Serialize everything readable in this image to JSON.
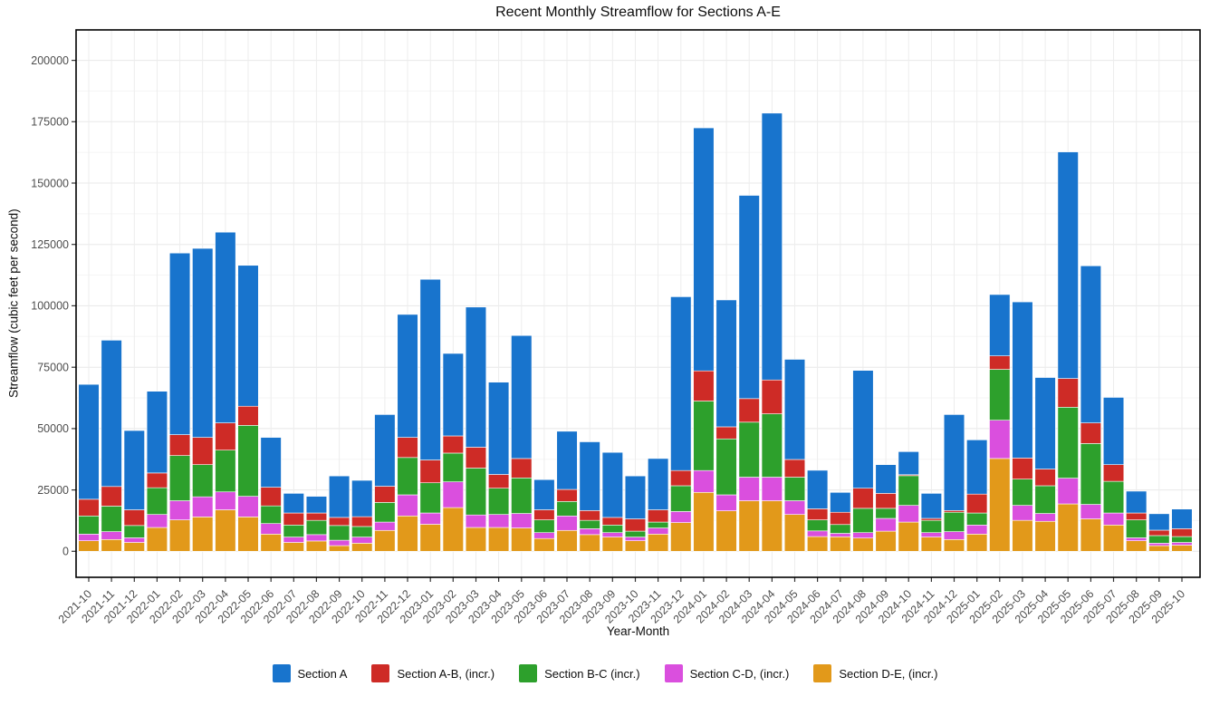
{
  "chart_data": {
    "type": "bar",
    "stacked": true,
    "title": "Recent Monthly Streamflow for Sections A-E",
    "xlabel": "Year-Month",
    "ylabel": "Streamflow (cubic feet per second)",
    "legend_position": "bottom",
    "grid": true,
    "stack_order": "last series at bottom, first series (Section A) on top",
    "categories": [
      "2021-10",
      "2021-11",
      "2021-12",
      "2022-01",
      "2022-02",
      "2022-03",
      "2022-04",
      "2022-05",
      "2022-06",
      "2022-07",
      "2022-08",
      "2022-09",
      "2022-10",
      "2022-11",
      "2022-12",
      "2023-01",
      "2023-02",
      "2023-03",
      "2023-04",
      "2023-05",
      "2023-06",
      "2023-07",
      "2023-08",
      "2023-09",
      "2023-10",
      "2023-11",
      "2023-12",
      "2024-01",
      "2024-02",
      "2024-03",
      "2024-04",
      "2024-05",
      "2024-06",
      "2024-07",
      "2024-08",
      "2024-09",
      "2024-10",
      "2024-11",
      "2024-12",
      "2025-01",
      "2025-02",
      "2025-03",
      "2025-04",
      "2025-05",
      "2025-06",
      "2025-07",
      "2025-08",
      "2025-09",
      "2025-10"
    ],
    "series": [
      {
        "name": "Section A",
        "color": "#1874CD",
        "values": [
          46800,
          59600,
          32300,
          33300,
          74000,
          77000,
          77700,
          57400,
          20300,
          8000,
          6800,
          16900,
          14800,
          29200,
          50100,
          73600,
          33600,
          57100,
          37600,
          50100,
          12300,
          23700,
          28000,
          26500,
          17500,
          20900,
          70800,
          99000,
          51700,
          82800,
          108700,
          40800,
          15700,
          8100,
          48000,
          11700,
          9400,
          10200,
          39100,
          22100,
          25000,
          63600,
          37300,
          92300,
          64000,
          27400,
          8900,
          6700,
          8000
        ]
      },
      {
        "name": "Section A-B, (incr.)",
        "color": "#CE2B26",
        "values": [
          6800,
          8000,
          6400,
          6000,
          8500,
          11100,
          11100,
          7800,
          7600,
          4900,
          3000,
          3300,
          4000,
          6600,
          8200,
          9300,
          7000,
          8500,
          5600,
          7900,
          4100,
          4900,
          4000,
          3100,
          5000,
          5000,
          6200,
          12300,
          4900,
          9600,
          13800,
          7200,
          4500,
          5000,
          8200,
          6100,
          400,
          800,
          700,
          7700,
          5500,
          8600,
          6800,
          11700,
          8400,
          6800,
          2800,
          2200,
          3200
        ]
      },
      {
        "name": "Section B-C (incr.)",
        "color": "#2DA02C",
        "values": [
          7400,
          10400,
          5000,
          10900,
          18400,
          13100,
          17000,
          28900,
          7200,
          4900,
          5800,
          6000,
          4300,
          8000,
          15200,
          12300,
          11700,
          19100,
          10700,
          14500,
          5200,
          5900,
          3400,
          3100,
          2400,
          2400,
          10500,
          28300,
          22800,
          22400,
          25800,
          9600,
          4500,
          3600,
          9900,
          4100,
          12100,
          5000,
          7900,
          4900,
          20700,
          10700,
          11300,
          28900,
          24800,
          12900,
          7300,
          3100,
          2400
        ]
      },
      {
        "name": "Section C-D, (incr.)",
        "color": "#DA4FDE",
        "values": [
          2700,
          3200,
          1900,
          5300,
          7800,
          8200,
          7300,
          8400,
          4300,
          2200,
          2600,
          2200,
          2500,
          3400,
          8600,
          4600,
          10500,
          5100,
          5300,
          5900,
          2400,
          5900,
          2400,
          1800,
          1500,
          2500,
          4500,
          8900,
          6500,
          9600,
          9600,
          5600,
          2300,
          1400,
          2200,
          5200,
          6800,
          1800,
          3200,
          3700,
          15600,
          6100,
          3200,
          10500,
          5900,
          4900,
          1200,
          1000,
          1100
        ]
      },
      {
        "name": "Section D-E, (incr.)",
        "color": "#E2991A",
        "values": [
          4300,
          4800,
          3600,
          9700,
          12800,
          14000,
          16900,
          14000,
          7000,
          3600,
          4200,
          2300,
          3300,
          8500,
          14400,
          11000,
          17800,
          9700,
          9700,
          9500,
          5200,
          8500,
          6800,
          5800,
          4300,
          7000,
          11700,
          24000,
          16500,
          20600,
          20600,
          15000,
          6000,
          5900,
          5400,
          8200,
          11900,
          5800,
          4800,
          7000,
          37800,
          12600,
          12200,
          19300,
          13200,
          10700,
          4300,
          2300,
          2500
        ]
      }
    ],
    "y_axis": {
      "ticks": [
        0,
        25000,
        50000,
        75000,
        100000,
        125000,
        150000,
        175000,
        200000
      ],
      "tick_labels": [
        "0",
        "25000",
        "50000",
        "75000",
        "100000",
        "125000",
        "150000",
        "175000",
        "200000"
      ],
      "lim": [
        -10600,
        212400
      ],
      "minor_grid_step": 12500
    }
  }
}
